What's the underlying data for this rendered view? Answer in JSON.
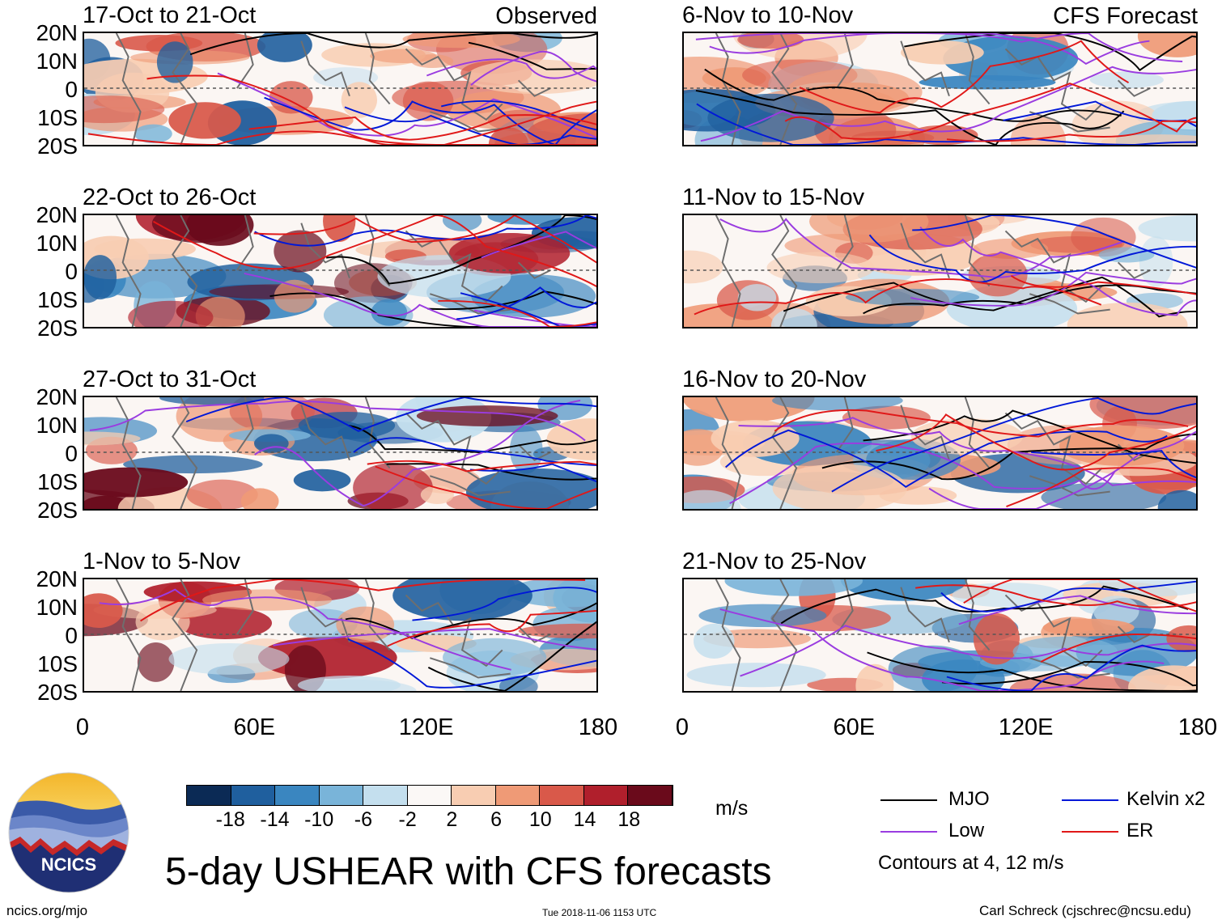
{
  "figure_title": "5-day USHEAR with CFS forecasts",
  "units": "m/s",
  "observed_tag": "Observed",
  "forecast_tag": "CFS Forecast",
  "latitude_labels": [
    "20N",
    "10N",
    "0",
    "10S",
    "20S"
  ],
  "longitude_labels": [
    "0",
    "60E",
    "120E",
    "180"
  ],
  "panels": [
    {
      "title": "17-Oct to 21-Oct",
      "kind": "observed"
    },
    {
      "title": "22-Oct to 26-Oct",
      "kind": "observed"
    },
    {
      "title": "27-Oct to 31-Oct",
      "kind": "observed"
    },
    {
      "title": "1-Nov to 5-Nov",
      "kind": "observed"
    },
    {
      "title": "6-Nov to 10-Nov",
      "kind": "forecast"
    },
    {
      "title": "11-Nov to 15-Nov",
      "kind": "forecast"
    },
    {
      "title": "16-Nov to 20-Nov",
      "kind": "forecast"
    },
    {
      "title": "21-Nov to 25-Nov",
      "kind": "forecast"
    }
  ],
  "colorbar": {
    "labels": [
      "-18",
      "-14",
      "-10",
      "-6",
      "-2",
      "2",
      "6",
      "10",
      "14",
      "18"
    ],
    "colors": [
      "#0b2a55",
      "#1f5f9e",
      "#3a86c0",
      "#79b4d9",
      "#c4dfee",
      "#fbf8f6",
      "#f8cdb2",
      "#ef9a76",
      "#d9594a",
      "#b01f2c",
      "#6a0a1b"
    ]
  },
  "legend": {
    "items": [
      {
        "label": "MJO",
        "color": "#000000"
      },
      {
        "label": "Kelvin x2",
        "color": "#0018d8"
      },
      {
        "label": "Low",
        "color": "#9a3ce0"
      },
      {
        "label": "ER",
        "color": "#e01818"
      }
    ],
    "note": "Contours at 4, 12 m/s"
  },
  "logo_text": "NCICS",
  "footer": {
    "url": "ncics.org/mjo",
    "timestamp": "Tue 2018-11-06 1153 UTC",
    "author": "Carl Schreck (cjschrec@ncsu.edu)"
  }
}
